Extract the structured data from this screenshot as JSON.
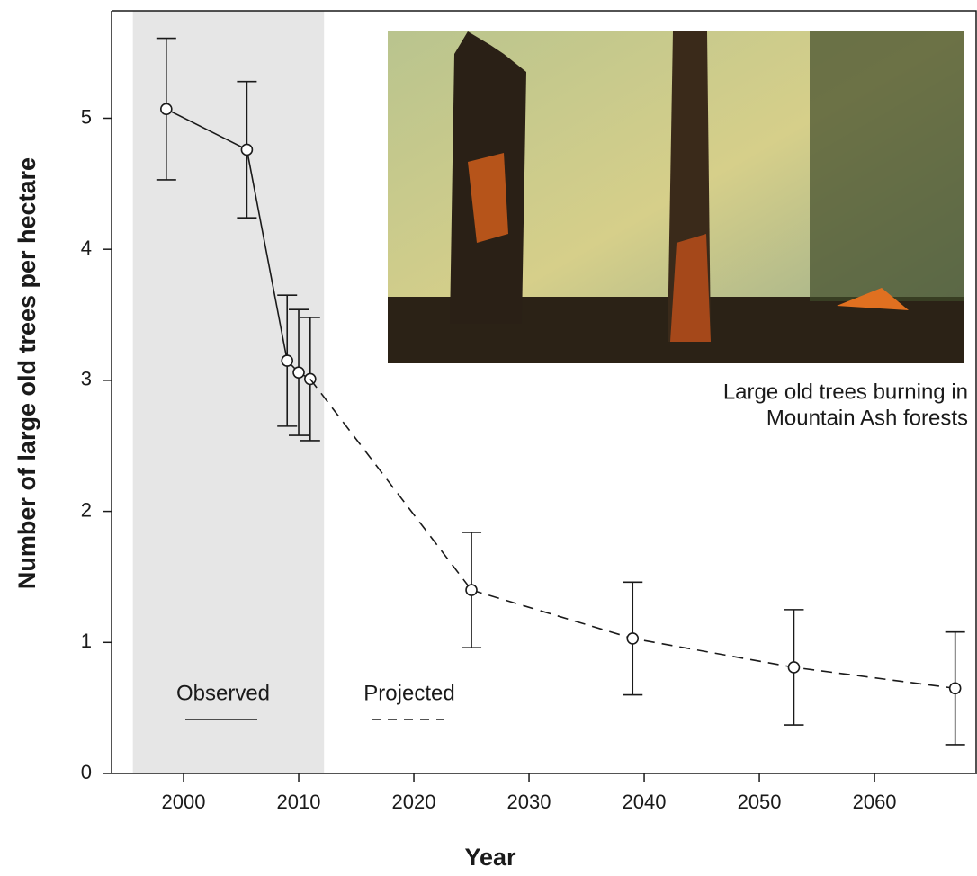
{
  "chart_data": {
    "type": "line",
    "x_label": "Year",
    "y_label": "Number of large old trees per hectare",
    "xlim": [
      1993.75,
      2068.9
    ],
    "ylim": [
      0,
      5.82
    ],
    "xticks": [
      2000,
      2010,
      2020,
      2030,
      2040,
      2050,
      2060
    ],
    "yticks": [
      0,
      1,
      2,
      3,
      4,
      5
    ],
    "shaded_xrange": [
      1995.6,
      2012.2
    ],
    "series": [
      {
        "name": "Observed",
        "color": "#1a1a1a",
        "dash": false,
        "x": [
          1998.5,
          2005.5,
          2009,
          2010,
          2011
        ],
        "values": [
          5.07,
          4.76,
          3.15,
          3.06,
          3.01
        ],
        "errors": [
          0.54,
          0.52,
          0.5,
          0.48,
          0.47
        ]
      },
      {
        "name": "Projected",
        "color": "#1a1a1a",
        "dash": true,
        "x": [
          2025,
          2039,
          2053,
          2067
        ],
        "values": [
          1.4,
          1.03,
          0.81,
          0.65
        ],
        "errors": [
          0.44,
          0.43,
          0.44,
          0.43
        ]
      }
    ],
    "annotation": [
      "Large old trees burning in",
      "Mountain Ash forests"
    ]
  }
}
